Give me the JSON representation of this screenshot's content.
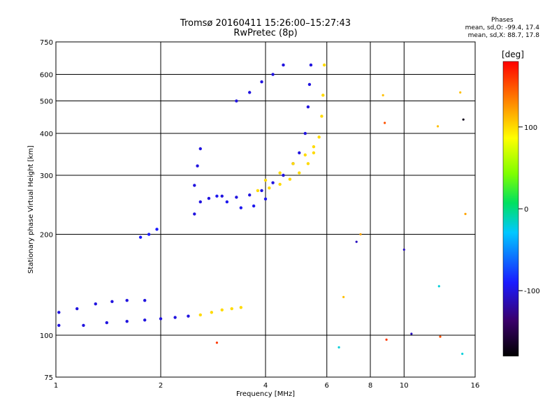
{
  "title_line1": "Tromsø 20160411 15:26:00–15:27:43",
  "title_line2": "RwPretec (8p)",
  "phases": {
    "header": "Phases",
    "line_o": "mean, sd,O: -99.4, 17.4",
    "line_x": "mean, sd,X:  88.7, 17.8"
  },
  "chart_data": {
    "type": "scatter",
    "xlabel": "Frequency [MHz]",
    "ylabel": "Stationary phase Virtual Height [km]",
    "x_scale": "log",
    "y_scale": "log",
    "xlim": [
      1,
      16
    ],
    "ylim": [
      75,
      750
    ],
    "x_ticks": [
      {
        "value": 1,
        "label": "1"
      },
      {
        "value": 2,
        "label": "2"
      },
      {
        "value": 4,
        "label": "4"
      },
      {
        "value": 6,
        "label": "6"
      },
      {
        "value": 8,
        "label": "8"
      },
      {
        "value": 10,
        "label": "10"
      },
      {
        "value": 16,
        "label": "16"
      }
    ],
    "y_ticks": [
      {
        "value": 75,
        "label": "75"
      },
      {
        "value": 100,
        "label": "100"
      },
      {
        "value": 200,
        "label": "200"
      },
      {
        "value": 300,
        "label": "300"
      },
      {
        "value": 400,
        "label": "400"
      },
      {
        "value": 500,
        "label": "500"
      },
      {
        "value": 600,
        "label": "600"
      },
      {
        "value": 750,
        "label": "750"
      }
    ],
    "grid": true,
    "colorbar": {
      "label": "[deg]",
      "range": [
        -180,
        180
      ],
      "ticks": [
        {
          "value": 100,
          "label": "100"
        },
        {
          "value": 0,
          "label": "0"
        },
        {
          "value": -100,
          "label": "-100"
        }
      ]
    },
    "traces": [
      {
        "phase": -100,
        "points": [
          [
            1.02,
            107
          ],
          [
            1.2,
            107
          ],
          [
            1.4,
            109
          ],
          [
            1.6,
            110
          ],
          [
            1.8,
            111
          ],
          [
            2.0,
            112
          ],
          [
            2.2,
            113
          ],
          [
            2.4,
            114
          ]
        ]
      },
      {
        "phase": -100,
        "points": [
          [
            1.02,
            117
          ],
          [
            1.15,
            120
          ],
          [
            1.3,
            124
          ],
          [
            1.45,
            126
          ],
          [
            1.6,
            127
          ],
          [
            1.8,
            127
          ]
        ]
      },
      {
        "phase": -100,
        "points": [
          [
            2.5,
            230
          ],
          [
            2.6,
            250
          ],
          [
            2.75,
            256
          ],
          [
            3.0,
            260
          ],
          [
            3.3,
            258
          ],
          [
            3.6,
            262
          ],
          [
            3.9,
            270
          ],
          [
            4.2,
            285
          ],
          [
            4.5,
            300
          ],
          [
            4.8,
            325
          ],
          [
            5.0,
            350
          ],
          [
            5.2,
            400
          ],
          [
            5.3,
            480
          ],
          [
            5.35,
            560
          ],
          [
            5.4,
            640
          ]
        ]
      },
      {
        "phase": -95,
        "points": [
          [
            2.9,
            260
          ],
          [
            3.1,
            250
          ],
          [
            3.4,
            240
          ],
          [
            3.7,
            243
          ],
          [
            4.0,
            255
          ]
        ]
      },
      {
        "phase": -100,
        "points": [
          [
            3.3,
            500
          ],
          [
            3.6,
            530
          ],
          [
            3.9,
            570
          ],
          [
            4.2,
            600
          ],
          [
            4.5,
            640
          ]
        ]
      },
      {
        "phase": -100,
        "points": [
          [
            2.5,
            280
          ],
          [
            2.55,
            320
          ],
          [
            2.6,
            360
          ]
        ]
      },
      {
        "phase": -90,
        "points": [
          [
            1.75,
            196
          ],
          [
            1.85,
            200
          ],
          [
            1.95,
            207
          ]
        ]
      },
      {
        "phase": 100,
        "points": [
          [
            2.6,
            115
          ],
          [
            2.8,
            117
          ],
          [
            3.0,
            119
          ],
          [
            3.2,
            120
          ],
          [
            3.4,
            121
          ]
        ]
      },
      {
        "phase": 100,
        "points": [
          [
            3.8,
            270
          ],
          [
            4.1,
            275
          ],
          [
            4.4,
            282
          ],
          [
            4.7,
            292
          ],
          [
            5.0,
            305
          ],
          [
            5.3,
            325
          ],
          [
            5.5,
            350
          ],
          [
            5.7,
            390
          ],
          [
            5.8,
            450
          ],
          [
            5.85,
            520
          ],
          [
            5.9,
            640
          ]
        ]
      },
      {
        "phase": 100,
        "points": [
          [
            4.0,
            290
          ],
          [
            4.4,
            305
          ],
          [
            4.8,
            325
          ],
          [
            5.2,
            345
          ],
          [
            5.5,
            365
          ]
        ]
      }
    ],
    "scattered_points": [
      {
        "x": 6.5,
        "y": 92,
        "phase": -20
      },
      {
        "x": 6.7,
        "y": 130,
        "phase": 110
      },
      {
        "x": 7.3,
        "y": 190,
        "phase": -110
      },
      {
        "x": 7.5,
        "y": 200,
        "phase": 120
      },
      {
        "x": 8.7,
        "y": 520,
        "phase": 110
      },
      {
        "x": 8.8,
        "y": 430,
        "phase": 150
      },
      {
        "x": 8.9,
        "y": 97,
        "phase": 160
      },
      {
        "x": 10.0,
        "y": 180,
        "phase": -110
      },
      {
        "x": 10.5,
        "y": 101,
        "phase": -110
      },
      {
        "x": 12.5,
        "y": 420,
        "phase": 110
      },
      {
        "x": 12.6,
        "y": 140,
        "phase": -20
      },
      {
        "x": 12.7,
        "y": 99,
        "phase": 150
      },
      {
        "x": 14.5,
        "y": 530,
        "phase": 110
      },
      {
        "x": 14.7,
        "y": 88,
        "phase": -20
      },
      {
        "x": 14.8,
        "y": 440,
        "phase": -170
      },
      {
        "x": 15.0,
        "y": 230,
        "phase": 120
      },
      {
        "x": 2.9,
        "y": 95,
        "phase": 160
      }
    ]
  }
}
